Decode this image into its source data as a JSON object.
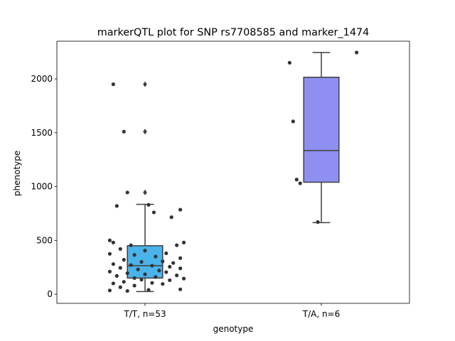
{
  "chart_data": {
    "type": "box",
    "title": "markerQTL plot for SNP rs7708585 and marker_1474",
    "xlabel": "genotype",
    "ylabel": "phenotype",
    "ylim": [
      -85,
      2350
    ],
    "yticks": [
      0,
      500,
      1000,
      1500,
      2000
    ],
    "categories": [
      "T/T, n=53",
      "T/A, n=6"
    ],
    "boxes": [
      {
        "category": "T/T, n=53",
        "color": "#4ab3ea",
        "whisker_low": 25,
        "q1": 150,
        "median": 265,
        "q3": 450,
        "whisker_high": 835,
        "outliers": [
          945,
          1510,
          1950
        ]
      },
      {
        "category": "T/A, n=6",
        "color": "#8f8ff2",
        "whisker_low": 665,
        "q1": 1040,
        "median": 1335,
        "q3": 2015,
        "whisker_high": 2245,
        "outliers": []
      }
    ],
    "points": [
      [
        {
          "dx": -0.18,
          "y": 1950
        },
        {
          "dx": -0.12,
          "y": 1510
        },
        {
          "dx": -0.1,
          "y": 945
        },
        {
          "dx": -0.16,
          "y": 820
        },
        {
          "dx": 0.02,
          "y": 830
        },
        {
          "dx": 0.2,
          "y": 785
        },
        {
          "dx": 0.05,
          "y": 760
        },
        {
          "dx": 0.15,
          "y": 715
        },
        {
          "dx": -0.2,
          "y": 500
        },
        {
          "dx": -0.18,
          "y": 480
        },
        {
          "dx": 0.22,
          "y": 480
        },
        {
          "dx": -0.08,
          "y": 455
        },
        {
          "dx": 0.18,
          "y": 455
        },
        {
          "dx": -0.14,
          "y": 420
        },
        {
          "dx": 0.0,
          "y": 405
        },
        {
          "dx": 0.12,
          "y": 380
        },
        {
          "dx": -0.2,
          "y": 375
        },
        {
          "dx": -0.06,
          "y": 365
        },
        {
          "dx": 0.06,
          "y": 350
        },
        {
          "dx": 0.2,
          "y": 335
        },
        {
          "dx": -0.12,
          "y": 320
        },
        {
          "dx": 0.1,
          "y": 305
        },
        {
          "dx": -0.02,
          "y": 300
        },
        {
          "dx": 0.16,
          "y": 290
        },
        {
          "dx": -0.18,
          "y": 280
        },
        {
          "dx": -0.08,
          "y": 270
        },
        {
          "dx": 0.04,
          "y": 265
        },
        {
          "dx": 0.14,
          "y": 255
        },
        {
          "dx": -0.14,
          "y": 245
        },
        {
          "dx": 0.2,
          "y": 240
        },
        {
          "dx": -0.04,
          "y": 230
        },
        {
          "dx": 0.08,
          "y": 220
        },
        {
          "dx": -0.2,
          "y": 210
        },
        {
          "dx": 0.12,
          "y": 205
        },
        {
          "dx": -0.1,
          "y": 195
        },
        {
          "dx": 0.0,
          "y": 185
        },
        {
          "dx": 0.18,
          "y": 175
        },
        {
          "dx": -0.16,
          "y": 170
        },
        {
          "dx": 0.06,
          "y": 160
        },
        {
          "dx": -0.06,
          "y": 150
        },
        {
          "dx": 0.22,
          "y": 145
        },
        {
          "dx": -0.02,
          "y": 135
        },
        {
          "dx": 0.14,
          "y": 130
        },
        {
          "dx": -0.12,
          "y": 115
        },
        {
          "dx": 0.04,
          "y": 105
        },
        {
          "dx": -0.18,
          "y": 100
        },
        {
          "dx": 0.1,
          "y": 95
        },
        {
          "dx": -0.06,
          "y": 80
        },
        {
          "dx": -0.14,
          "y": 65
        },
        {
          "dx": 0.2,
          "y": 45
        },
        {
          "dx": -0.2,
          "y": 35
        },
        {
          "dx": 0.02,
          "y": 40
        },
        {
          "dx": -0.1,
          "y": 30
        }
      ],
      [
        {
          "dx": 0.2,
          "y": 2245
        },
        {
          "dx": -0.18,
          "y": 2150
        },
        {
          "dx": -0.16,
          "y": 1605
        },
        {
          "dx": -0.14,
          "y": 1065
        },
        {
          "dx": -0.12,
          "y": 1030
        },
        {
          "dx": -0.02,
          "y": 670
        }
      ]
    ]
  }
}
